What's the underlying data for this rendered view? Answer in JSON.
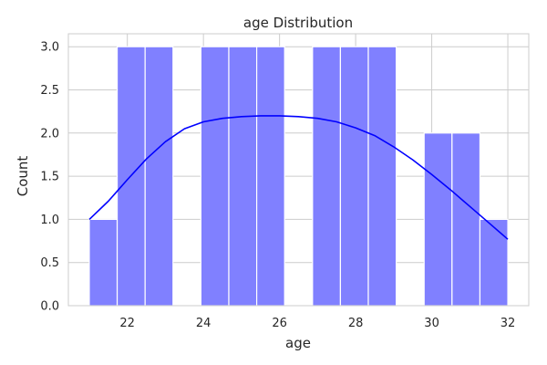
{
  "chart_data": {
    "type": "bar",
    "title": "age Distribution",
    "xlabel": "age",
    "ylabel": "Count",
    "xlim": [
      20.45,
      32.55
    ],
    "ylim": [
      0,
      3.15
    ],
    "xticks": [
      22,
      24,
      26,
      28,
      30,
      32
    ],
    "yticks": [
      0.0,
      0.5,
      1.0,
      1.5,
      2.0,
      2.5,
      3.0
    ],
    "grid": true,
    "legend": "none",
    "bins": [
      {
        "x0": 21.0,
        "x1": 21.733,
        "count": 1
      },
      {
        "x0": 21.733,
        "x1": 22.467,
        "count": 3
      },
      {
        "x0": 22.467,
        "x1": 23.2,
        "count": 3
      },
      {
        "x0": 23.2,
        "x1": 23.933,
        "count": 0
      },
      {
        "x0": 23.933,
        "x1": 24.667,
        "count": 3
      },
      {
        "x0": 24.667,
        "x1": 25.4,
        "count": 3
      },
      {
        "x0": 25.4,
        "x1": 26.133,
        "count": 3
      },
      {
        "x0": 26.133,
        "x1": 26.867,
        "count": 0
      },
      {
        "x0": 26.867,
        "x1": 27.6,
        "count": 3
      },
      {
        "x0": 27.6,
        "x1": 28.333,
        "count": 3
      },
      {
        "x0": 28.333,
        "x1": 29.067,
        "count": 3
      },
      {
        "x0": 29.067,
        "x1": 29.8,
        "count": 0
      },
      {
        "x0": 29.8,
        "x1": 30.533,
        "count": 2
      },
      {
        "x0": 30.533,
        "x1": 31.267,
        "count": 2
      },
      {
        "x0": 31.267,
        "x1": 32.0,
        "count": 1
      }
    ],
    "kde": {
      "x": [
        21.0,
        21.5,
        22.0,
        22.5,
        23.0,
        23.5,
        24.0,
        24.5,
        25.0,
        25.5,
        26.0,
        26.5,
        27.0,
        27.5,
        28.0,
        28.5,
        29.0,
        29.5,
        30.0,
        30.5,
        31.0,
        31.5,
        32.0
      ],
      "y": [
        1.0,
        1.21,
        1.46,
        1.7,
        1.9,
        2.05,
        2.13,
        2.17,
        2.19,
        2.2,
        2.2,
        2.19,
        2.17,
        2.13,
        2.06,
        1.97,
        1.84,
        1.69,
        1.52,
        1.34,
        1.15,
        0.96,
        0.77
      ]
    },
    "colors": {
      "bar_fill": "#8080ff",
      "bar_edge": "#ffffff",
      "kde_line": "#0000ff",
      "grid": "#cccccc",
      "axes_edge": "#cccccc"
    }
  }
}
